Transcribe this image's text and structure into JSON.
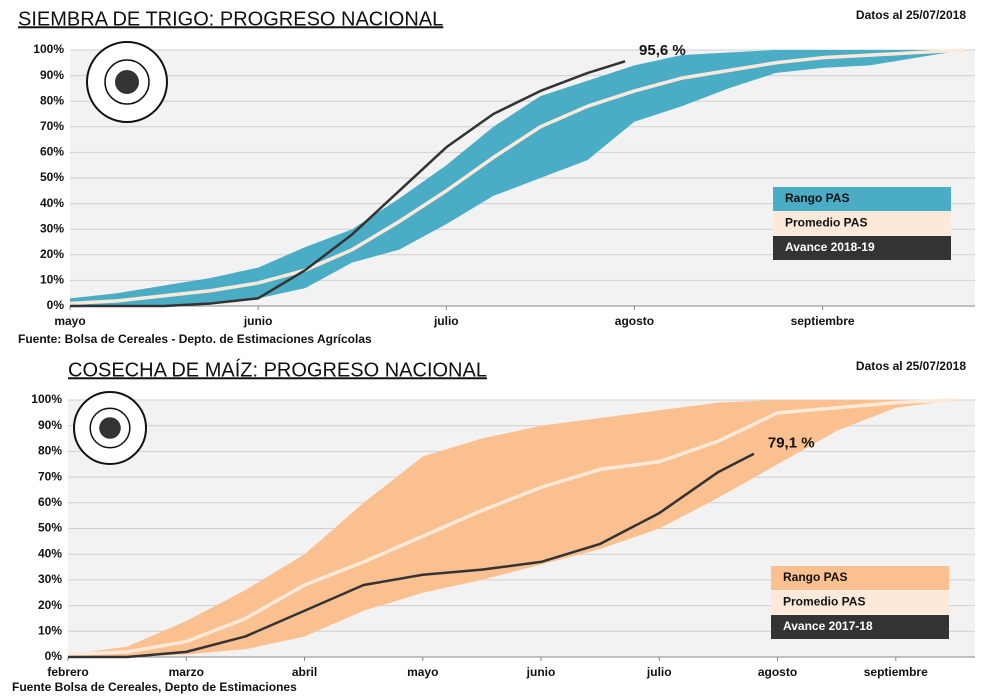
{
  "chart_data": [
    {
      "type": "line",
      "title": "SIEMBRA DE TRIGO: PROGRESO NACIONAL",
      "subtitle": "Datos al 25/07/2018",
      "source": "Fuente: Bolsa de Cereales - Depto. de Estimaciones Agrícolas",
      "annotation": "95,6 %",
      "grid": true,
      "legend": "center right",
      "xlim": [
        0,
        4.81
      ],
      "ylim": [
        0,
        100
      ],
      "xticks": [
        {
          "value": 0,
          "label": "mayo"
        },
        {
          "value": 1,
          "label": "junio"
        },
        {
          "value": 2,
          "label": "julio"
        },
        {
          "value": 3,
          "label": "agosto"
        },
        {
          "value": 4,
          "label": "septiembre"
        }
      ],
      "yticks": [
        {
          "value": 0,
          "label": "0%"
        },
        {
          "value": 10,
          "label": "10%"
        },
        {
          "value": 20,
          "label": "20%"
        },
        {
          "value": 30,
          "label": "30%"
        },
        {
          "value": 40,
          "label": "40%"
        },
        {
          "value": 50,
          "label": "50%"
        },
        {
          "value": 60,
          "label": "60%"
        },
        {
          "value": 70,
          "label": "70%"
        },
        {
          "value": 80,
          "label": "80%"
        },
        {
          "value": 90,
          "label": "90%"
        },
        {
          "value": 100,
          "label": "100%"
        }
      ],
      "series": [
        {
          "name": "Rango PAS",
          "color": "#4bacc6",
          "x": [
            0,
            0.25,
            0.5,
            0.75,
            1,
            1.25,
            1.5,
            1.75,
            2,
            2.25,
            2.5,
            2.75,
            3,
            3.25,
            3.5,
            3.75,
            4,
            4.25,
            4.5,
            4.75
          ],
          "low": [
            0,
            0,
            0,
            1,
            3,
            7,
            17,
            22,
            32,
            43,
            50,
            57,
            72,
            78,
            85,
            91,
            93,
            94,
            97,
            100
          ],
          "high": [
            3,
            5,
            8,
            11,
            15,
            23,
            30,
            42,
            55,
            70,
            82,
            88,
            94,
            98,
            99,
            100,
            100,
            100,
            100,
            100
          ]
        },
        {
          "name": "Promedio PAS",
          "color": "#fde9d9",
          "x": [
            0,
            0.25,
            0.5,
            0.75,
            1,
            1.25,
            1.5,
            1.75,
            2,
            2.25,
            2.5,
            2.75,
            3,
            3.25,
            3.5,
            3.75,
            4,
            4.25,
            4.5,
            4.75
          ],
          "values": [
            1,
            2,
            4,
            6,
            9,
            14,
            22,
            33,
            45,
            58,
            70,
            78,
            84,
            89,
            92,
            95,
            97,
            98,
            99,
            100
          ]
        },
        {
          "name": "Avance 2018-19",
          "color": "#333333",
          "x": [
            0,
            0.25,
            0.5,
            0.75,
            1,
            1.25,
            1.5,
            1.75,
            2,
            2.25,
            2.5,
            2.75,
            2.95
          ],
          "values": [
            0,
            0,
            0,
            1,
            3,
            14,
            28,
            45,
            62,
            75,
            84,
            91,
            95.6
          ]
        }
      ]
    },
    {
      "type": "line",
      "title": "COSECHA DE MAÍZ: PROGRESO NACIONAL",
      "subtitle": "Datos al 25/07/2018",
      "source": "Fuente Bolsa de Cereales, Depto de Estimaciones",
      "annotation": "79,1 %",
      "grid": true,
      "legend": "center right",
      "xlim": [
        0,
        7.67
      ],
      "ylim": [
        0,
        100
      ],
      "xticks": [
        {
          "value": 0,
          "label": "febrero"
        },
        {
          "value": 1,
          "label": "marzo"
        },
        {
          "value": 2,
          "label": "abril"
        },
        {
          "value": 3,
          "label": "mayo"
        },
        {
          "value": 4,
          "label": "junio"
        },
        {
          "value": 5,
          "label": "julio"
        },
        {
          "value": 6,
          "label": "agosto"
        },
        {
          "value": 7,
          "label": "septiembre"
        }
      ],
      "yticks": [
        {
          "value": 0,
          "label": "0%"
        },
        {
          "value": 10,
          "label": "10%"
        },
        {
          "value": 20,
          "label": "20%"
        },
        {
          "value": 30,
          "label": "30%"
        },
        {
          "value": 40,
          "label": "40%"
        },
        {
          "value": 50,
          "label": "50%"
        },
        {
          "value": 60,
          "label": "60%"
        },
        {
          "value": 70,
          "label": "70%"
        },
        {
          "value": 80,
          "label": "80%"
        },
        {
          "value": 90,
          "label": "90%"
        },
        {
          "value": 100,
          "label": "100%"
        }
      ],
      "series": [
        {
          "name": "Rango PAS",
          "color": "#fac090",
          "x": [
            0,
            0.5,
            1,
            1.5,
            2,
            2.5,
            3,
            3.5,
            4,
            4.5,
            5,
            5.5,
            6,
            6.5,
            7,
            7.5
          ],
          "low": [
            0,
            0,
            1,
            3,
            8,
            18,
            25,
            30,
            36,
            42,
            50,
            62,
            75,
            88,
            97,
            100
          ],
          "high": [
            1,
            4,
            14,
            26,
            40,
            60,
            78,
            85,
            90,
            93,
            96,
            99,
            100,
            100,
            100,
            100
          ]
        },
        {
          "name": "Promedio PAS",
          "color": "#fde9d9",
          "x": [
            0,
            0.5,
            1,
            1.5,
            2,
            2.5,
            3,
            3.5,
            4,
            4.5,
            5,
            5.5,
            6,
            6.5,
            7,
            7.5
          ],
          "values": [
            1,
            2,
            6,
            15,
            28,
            37,
            47,
            57,
            66,
            73,
            76,
            84,
            95,
            97,
            99,
            100
          ]
        },
        {
          "name": "Avance 2017-18",
          "color": "#333333",
          "x": [
            0,
            0.5,
            1,
            1.5,
            2,
            2.5,
            3,
            3.5,
            4,
            4.5,
            5,
            5.5,
            5.8
          ],
          "values": [
            0,
            0,
            2,
            8,
            18,
            28,
            32,
            34,
            37,
            44,
            56,
            72,
            79.1
          ]
        }
      ]
    }
  ]
}
